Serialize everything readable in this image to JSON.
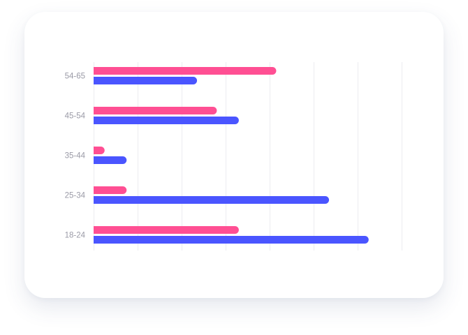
{
  "chart_data": {
    "type": "bar",
    "orientation": "horizontal",
    "title": "",
    "xlabel": "",
    "ylabel": "",
    "categories": [
      "54-65",
      "45-54",
      "35-44",
      "25-34",
      "18-24"
    ],
    "series": [
      {
        "color": "#ff4f93",
        "values": [
          41.5,
          28,
          2.5,
          7.5,
          33
        ]
      },
      {
        "color": "#4a55ff",
        "values": [
          23.5,
          33,
          7.5,
          53.5,
          62.5
        ]
      }
    ],
    "xlim": [
      0,
      70
    ],
    "x_tick_step": 10,
    "grid": true,
    "legend": "none"
  }
}
